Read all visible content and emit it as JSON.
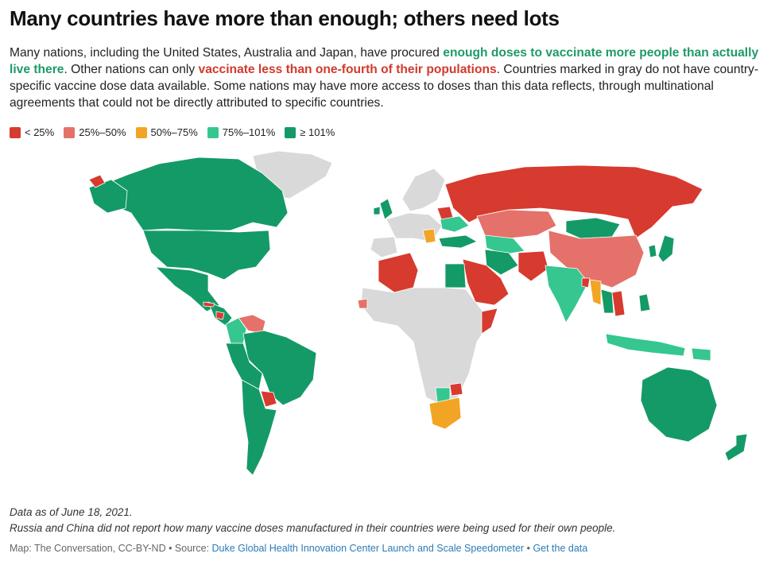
{
  "header": {
    "title": "Many countries have more than enough; others need lots"
  },
  "description": {
    "part1": "Many nations, including the United States, Australia and Japan, have procured ",
    "highlight_green": "enough doses to vaccinate more people than actually live there",
    "part2": ". Other nations can only ",
    "highlight_red": "vaccinate less than one-fourth of their populations",
    "part3": ". Countries marked in gray do not have country-specific vaccine dose data available. Some nations may have more access to doses than this data reflects, through multinational agreements that could not be directly attributed to specific countries."
  },
  "legend": {
    "items": [
      {
        "label": "< 25%",
        "color": "#d73a2e"
      },
      {
        "label": "25%–50%",
        "color": "#e5716b"
      },
      {
        "label": "50%–75%",
        "color": "#f2a524"
      },
      {
        "label": "75%–101%",
        "color": "#35c78f"
      },
      {
        "label": "≥ 101%",
        "color": "#149a67"
      }
    ]
  },
  "colors": {
    "no_data": "#d9d9d9",
    "lt25": "#d73a2e",
    "p25_50": "#e5716b",
    "p50_75": "#f2a524",
    "p75_101": "#35c78f",
    "gte101": "#149a67"
  },
  "footer": {
    "note_date": "Data as of June 18, 2021.",
    "note_russia_china": "Russia and China did not report how many vaccine doses manufactured in their countries were being used for their own people.",
    "credit_prefix": "Map: The Conversation, CC-BY-ND • Source: ",
    "source_link": "Duke Global Health Innovation Center Launch and Scale Speedometer",
    "separator": " • ",
    "data_link": "Get the data"
  }
}
